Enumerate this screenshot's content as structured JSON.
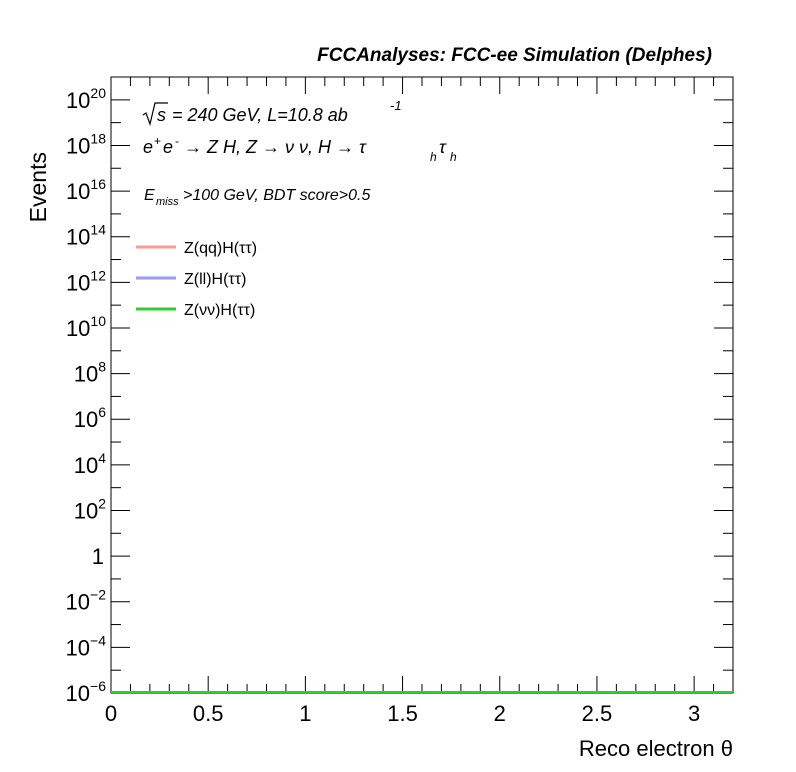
{
  "chart_data": {
    "type": "line",
    "title": "FCCAnalyses: FCC-ee Simulation (Delphes)",
    "xlabel": "Reco electron θ",
    "ylabel": "Events",
    "xlim": [
      0,
      3.2
    ],
    "ylim_exponent": [
      -6,
      21
    ],
    "yscale": "log",
    "x_ticks": [
      "0",
      "0.5",
      "1",
      "1.5",
      "2",
      "2.5",
      "3"
    ],
    "y_ticks": [
      {
        "base": "10",
        "exp": "−6",
        "value": -6
      },
      {
        "base": "10",
        "exp": "−4",
        "value": -4
      },
      {
        "base": "10",
        "exp": "−2",
        "value": -2
      },
      {
        "base": "1",
        "exp": "",
        "value": 0
      },
      {
        "base": "10",
        "exp": "2",
        "value": 2
      },
      {
        "base": "10",
        "exp": "4",
        "value": 4
      },
      {
        "base": "10",
        "exp": "6",
        "value": 6
      },
      {
        "base": "10",
        "exp": "8",
        "value": 8
      },
      {
        "base": "10",
        "exp": "10",
        "value": 10
      },
      {
        "base": "10",
        "exp": "12",
        "value": 12
      },
      {
        "base": "10",
        "exp": "14",
        "value": 14
      },
      {
        "base": "10",
        "exp": "16",
        "value": 16
      },
      {
        "base": "10",
        "exp": "18",
        "value": 18
      },
      {
        "base": "10",
        "exp": "20",
        "value": 20
      }
    ],
    "annotations": {
      "sqrt_s": "s",
      "energy_lumi": "= 240 GeV, L=10.8 ab",
      "lumi_exp": "-1",
      "process": {
        "e": "e",
        "plus": "+",
        "e2": "e",
        "minus": "-",
        "arrow1": "→ Z H, Z  → ν ν, H  → τ",
        "h1": "h",
        "tau2": "τ",
        "h2": "h"
      },
      "cut": {
        "E": "E",
        "miss": "miss",
        "rest": ">100 GeV, BDT score>0.5"
      }
    },
    "series": [
      {
        "name": "Z(qq)H(ττ)",
        "color": "#ff9999",
        "x": [
          0,
          3.2
        ],
        "y": [
          1e-06,
          1e-06
        ]
      },
      {
        "name": "Z(ll)H(ττ)",
        "color": "#9999ff",
        "x": [
          0,
          3.2
        ],
        "y": [
          1e-06,
          1e-06
        ]
      },
      {
        "name": "Z(νν)H(ττ)",
        "color": "#33cc33",
        "x": [
          0,
          3.2
        ],
        "y": [
          1e-06,
          1e-06
        ]
      }
    ],
    "legend_position": "top-left",
    "grid": false
  }
}
